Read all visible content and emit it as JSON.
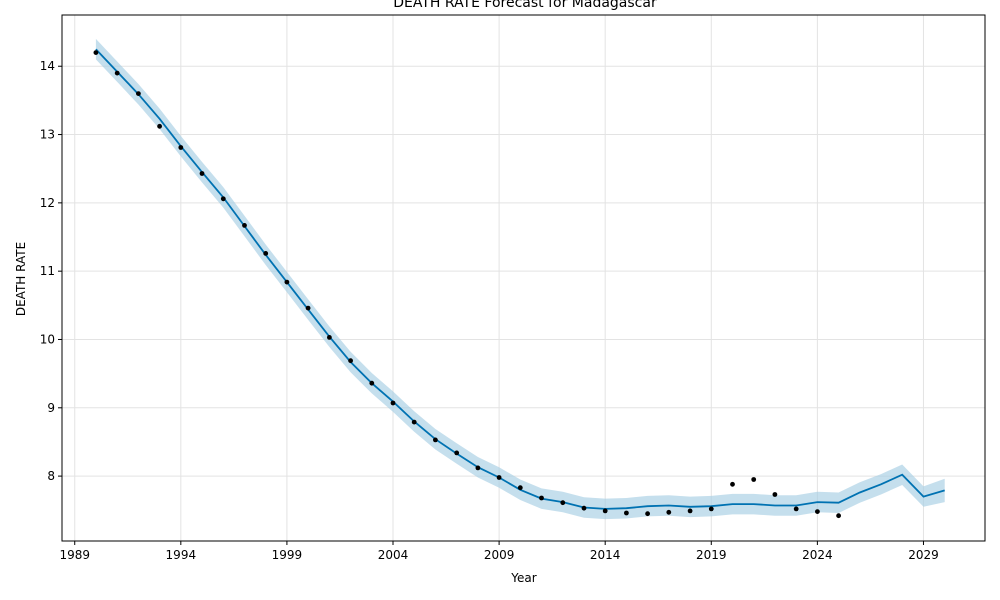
{
  "chart_data": {
    "type": "line",
    "title": "DEATH RATE Forecast for Madagascar",
    "xlabel": "Year",
    "ylabel": "DEATH RATE",
    "xlim": [
      1988.4,
      2031.9
    ],
    "ylim": [
      7.05,
      14.75
    ],
    "xticks": [
      1989,
      1994,
      1999,
      2004,
      2009,
      2014,
      2019,
      2024,
      2029
    ],
    "yticks": [
      8,
      9,
      10,
      11,
      12,
      13,
      14
    ],
    "grid": true,
    "colors": {
      "forecast": "#0072b2",
      "band": "#a6cee3",
      "observed": "#000000"
    },
    "forecast": {
      "x": [
        1990,
        1991,
        1992,
        1993,
        1994,
        1995,
        1996,
        1997,
        1998,
        1999,
        2000,
        2001,
        2002,
        2003,
        2004,
        2005,
        2006,
        2007,
        2008,
        2009,
        2010,
        2011,
        2012,
        2013,
        2014,
        2015,
        2016,
        2017,
        2018,
        2019,
        2020,
        2021,
        2022,
        2023,
        2024,
        2025,
        2026,
        2027,
        2028,
        2029,
        2030
      ],
      "y": [
        14.25,
        13.92,
        13.59,
        13.23,
        12.83,
        12.45,
        12.08,
        11.66,
        11.24,
        10.84,
        10.44,
        10.04,
        9.67,
        9.36,
        9.09,
        8.8,
        8.54,
        8.33,
        8.13,
        7.98,
        7.8,
        7.67,
        7.62,
        7.54,
        7.52,
        7.53,
        7.56,
        7.57,
        7.55,
        7.56,
        7.59,
        7.59,
        7.57,
        7.57,
        7.62,
        7.61,
        7.76,
        7.88,
        8.02,
        7.7,
        7.79
      ],
      "lower": [
        14.1,
        13.77,
        13.44,
        13.08,
        12.68,
        12.3,
        11.93,
        11.51,
        11.09,
        10.69,
        10.29,
        9.89,
        9.52,
        9.21,
        8.94,
        8.65,
        8.39,
        8.18,
        7.98,
        7.83,
        7.65,
        7.52,
        7.47,
        7.39,
        7.37,
        7.38,
        7.41,
        7.42,
        7.4,
        7.41,
        7.44,
        7.44,
        7.42,
        7.42,
        7.47,
        7.46,
        7.61,
        7.73,
        7.87,
        7.55,
        7.62
      ],
      "upper": [
        14.4,
        14.07,
        13.74,
        13.38,
        12.98,
        12.6,
        12.23,
        11.81,
        11.39,
        10.99,
        10.59,
        10.19,
        9.82,
        9.51,
        9.24,
        8.95,
        8.69,
        8.48,
        8.28,
        8.13,
        7.95,
        7.82,
        7.77,
        7.69,
        7.67,
        7.68,
        7.71,
        7.72,
        7.7,
        7.71,
        7.74,
        7.74,
        7.72,
        7.72,
        7.77,
        7.76,
        7.91,
        8.03,
        8.17,
        7.85,
        7.96
      ]
    },
    "observed": {
      "x": [
        1990,
        1991,
        1992,
        1993,
        1994,
        1995,
        1996,
        1997,
        1998,
        1999,
        2000,
        2001,
        2002,
        2003,
        2004,
        2005,
        2006,
        2007,
        2008,
        2009,
        2010,
        2011,
        2012,
        2013,
        2014,
        2015,
        2016,
        2017,
        2018,
        2019,
        2020,
        2021,
        2022,
        2023,
        2024,
        2025
      ],
      "y": [
        14.2,
        13.9,
        13.6,
        13.12,
        12.81,
        12.43,
        12.06,
        11.67,
        11.26,
        10.84,
        10.46,
        10.03,
        9.69,
        9.36,
        9.07,
        8.79,
        8.53,
        8.34,
        8.12,
        7.98,
        7.83,
        7.68,
        7.61,
        7.53,
        7.49,
        7.46,
        7.45,
        7.47,
        7.49,
        7.52,
        7.88,
        7.95,
        7.73,
        7.52,
        7.48,
        7.42
      ]
    }
  }
}
